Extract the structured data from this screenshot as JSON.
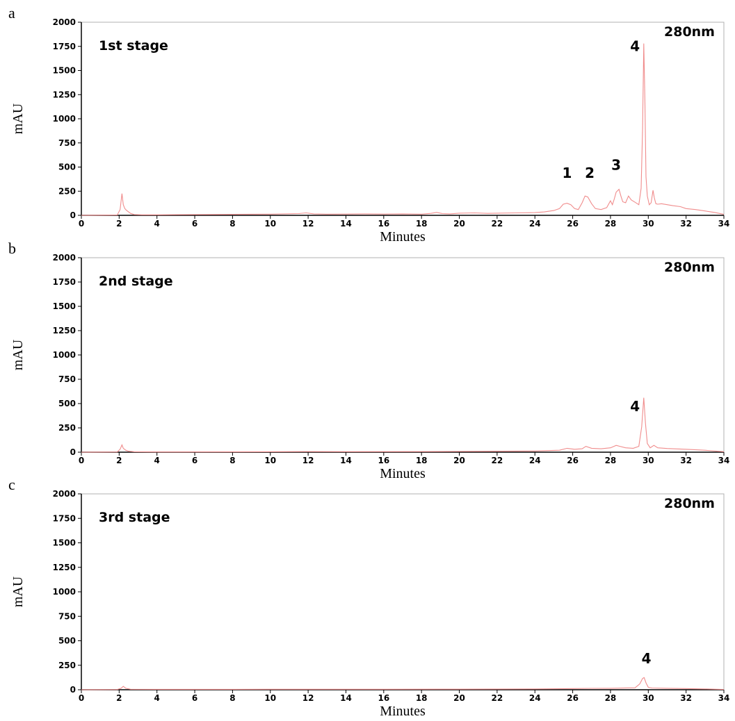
{
  "chart_data": [
    {
      "type": "line",
      "panel_label": "a",
      "stage_label": "1st stage",
      "wavelength_label": "280nm",
      "xlabel": "Minutes",
      "ylabel": "mAU",
      "xlim": [
        0,
        34
      ],
      "ylim": [
        0,
        2000
      ],
      "xticks": [
        "0",
        "2",
        "4",
        "6",
        "8",
        "10",
        "12",
        "14",
        "16",
        "18",
        "20",
        "22",
        "24",
        "26",
        "28",
        "30",
        "32",
        "34"
      ],
      "yticks": [
        "0",
        "250",
        "500",
        "750",
        "1000",
        "1250",
        "1500",
        "1750",
        "2000"
      ],
      "grid": false,
      "color": "#f08c8c",
      "peak_labels": [
        {
          "text": "1",
          "x": 25.7,
          "y": 390
        },
        {
          "text": "2",
          "x": 26.9,
          "y": 390
        },
        {
          "text": "3",
          "x": 28.3,
          "y": 470
        },
        {
          "text": "4",
          "x": 29.3,
          "y": 1700
        }
      ],
      "series": [
        {
          "x": [
            0,
            1.9,
            2.05,
            2.15,
            2.22,
            2.3,
            2.4,
            2.5,
            2.6,
            2.8,
            3.2,
            4,
            6,
            8,
            10,
            11.5,
            11.9,
            12.3,
            13,
            14,
            15,
            16,
            17,
            18,
            18.5,
            18.8,
            19.1,
            19.5,
            20,
            20.8,
            21.5,
            22,
            23,
            24,
            24.5,
            25,
            25.3,
            25.5,
            25.7,
            25.9,
            26.1,
            26.3,
            26.5,
            26.65,
            26.8,
            27,
            27.2,
            27.5,
            27.8,
            28,
            28.1,
            28.2,
            28.3,
            28.45,
            28.55,
            28.65,
            28.8,
            28.95,
            29.1,
            29.3,
            29.5,
            29.62,
            29.7,
            29.76,
            29.82,
            29.88,
            29.95,
            30.05,
            30.15,
            30.25,
            30.32,
            30.4,
            30.5,
            30.7,
            31,
            31.3,
            31.7,
            32,
            32.5,
            33,
            33.5,
            34
          ],
          "y": [
            0,
            3,
            60,
            225,
            110,
            70,
            50,
            35,
            20,
            8,
            5,
            5,
            8,
            10,
            12,
            18,
            25,
            15,
            12,
            13,
            15,
            13,
            15,
            12,
            20,
            30,
            18,
            15,
            22,
            25,
            20,
            22,
            25,
            28,
            35,
            50,
            70,
            115,
            125,
            110,
            70,
            60,
            130,
            200,
            190,
            120,
            70,
            60,
            80,
            150,
            110,
            170,
            240,
            270,
            200,
            140,
            130,
            200,
            160,
            135,
            110,
            280,
            900,
            1780,
            1200,
            400,
            200,
            110,
            130,
            260,
            180,
            120,
            115,
            120,
            110,
            100,
            90,
            70,
            60,
            45,
            30,
            10
          ]
        }
      ]
    },
    {
      "type": "line",
      "panel_label": "b",
      "stage_label": "2nd stage",
      "wavelength_label": "280nm",
      "xlabel": "Minutes",
      "ylabel": "mAU",
      "xlim": [
        0,
        34
      ],
      "ylim": [
        0,
        2000
      ],
      "xticks": [
        "0",
        "2",
        "4",
        "6",
        "8",
        "10",
        "12",
        "14",
        "16",
        "18",
        "20",
        "22",
        "24",
        "26",
        "28",
        "30",
        "32",
        "34"
      ],
      "yticks": [
        "0",
        "250",
        "500",
        "750",
        "1000",
        "1250",
        "1500",
        "1750",
        "2000"
      ],
      "grid": false,
      "color": "#f08c8c",
      "peak_labels": [
        {
          "text": "4",
          "x": 29.3,
          "y": 420
        }
      ],
      "series": [
        {
          "x": [
            0,
            1.9,
            2.05,
            2.15,
            2.22,
            2.35,
            2.5,
            2.8,
            4,
            8,
            11.9,
            14,
            18,
            20,
            24,
            25.3,
            25.7,
            26.1,
            26.5,
            26.7,
            27,
            27.5,
            28,
            28.3,
            28.5,
            28.8,
            29.2,
            29.5,
            29.65,
            29.76,
            29.85,
            29.95,
            30.1,
            30.3,
            30.5,
            31,
            32,
            33,
            34
          ],
          "y": [
            0,
            2,
            30,
            75,
            40,
            20,
            10,
            4,
            2,
            3,
            6,
            5,
            6,
            8,
            12,
            20,
            40,
            30,
            35,
            60,
            40,
            35,
            45,
            70,
            60,
            45,
            40,
            60,
            260,
            560,
            300,
            90,
            45,
            70,
            45,
            38,
            30,
            20,
            5
          ]
        }
      ]
    },
    {
      "type": "line",
      "panel_label": "c",
      "stage_label": "3rd stage",
      "wavelength_label": "280nm",
      "xlabel": "Minutes",
      "ylabel": "mAU",
      "xlim": [
        0,
        34
      ],
      "ylim": [
        0,
        2000
      ],
      "xticks": [
        "0",
        "2",
        "4",
        "6",
        "8",
        "10",
        "12",
        "14",
        "16",
        "18",
        "20",
        "22",
        "24",
        "26",
        "28",
        "30",
        "32",
        "34"
      ],
      "yticks": [
        "0",
        "250",
        "500",
        "750",
        "1000",
        "1250",
        "1500",
        "1750",
        "2000"
      ],
      "grid": false,
      "color": "#f08c8c",
      "peak_labels": [
        {
          "text": "4",
          "x": 29.9,
          "y": 270
        }
      ],
      "series": [
        {
          "x": [
            0,
            1.9,
            2.1,
            2.22,
            2.35,
            2.6,
            4,
            8,
            12,
            16,
            20,
            24,
            26,
            27,
            28,
            29.3,
            29.55,
            29.7,
            29.78,
            29.88,
            30,
            30.2,
            31,
            32,
            33,
            34
          ],
          "y": [
            0,
            2,
            15,
            35,
            15,
            5,
            4,
            4,
            5,
            5,
            6,
            8,
            12,
            14,
            15,
            20,
            60,
            115,
            125,
            70,
            25,
            18,
            15,
            12,
            8,
            3
          ]
        }
      ]
    }
  ]
}
